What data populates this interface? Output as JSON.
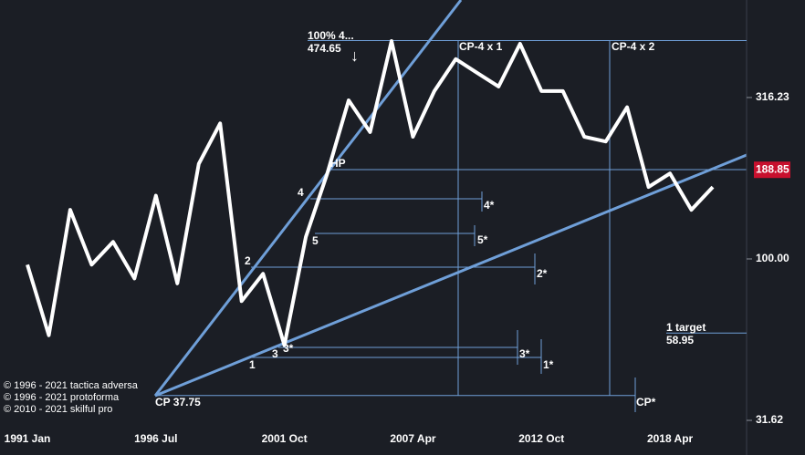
{
  "chart_data": {
    "type": "line",
    "log_scale": true,
    "categories": [
      "1991 Jan",
      null,
      null,
      null,
      null,
      null,
      "1996 Jul",
      null,
      null,
      null,
      null,
      null,
      "2001 Oct",
      null,
      null,
      null,
      null,
      null,
      "2007 Apr",
      null,
      null,
      null,
      null,
      null,
      "2012 Oct",
      null,
      null,
      null,
      null,
      null,
      "2018 Apr",
      null,
      null
    ],
    "series": [
      {
        "color": "#ffffff",
        "values": [
          96,
          58,
          142,
          96,
          113,
          87,
          157,
          84,
          197,
          263,
          74,
          90,
          54,
          117,
          184,
          310,
          247,
          473,
          239,
          331,
          416,
          377,
          342,
          464,
          331,
          331,
          239,
          231,
          295,
          167,
          184,
          142,
          167
        ]
      }
    ],
    "ylim": [
      24.7,
      634
    ],
    "yticks": [
      31.62,
      {
        "value": 100,
        "label": "100.00"
      },
      316.23
    ],
    "last_price": 188.85,
    "levels": [
      {
        "value": 474.65,
        "label": "474.65"
      },
      {
        "value": 58.95,
        "label": "58.95"
      },
      {
        "value": 37.75,
        "label": "CP 37.75"
      }
    ],
    "annotations": [
      "100% 4...",
      "↓",
      "CP-4 x 1",
      "CP-4 x 2",
      "HP",
      "4",
      "4*",
      "5",
      "5*",
      "2",
      "2*",
      "3",
      "3*",
      "3*",
      "1",
      "1*",
      "1 target",
      "CP*"
    ]
  },
  "copyright": [
    "© 1996 - 2021 tactica adversa",
    "© 1996 - 2021 protoforma",
    "© 2010 - 2021 skilful pro"
  ]
}
